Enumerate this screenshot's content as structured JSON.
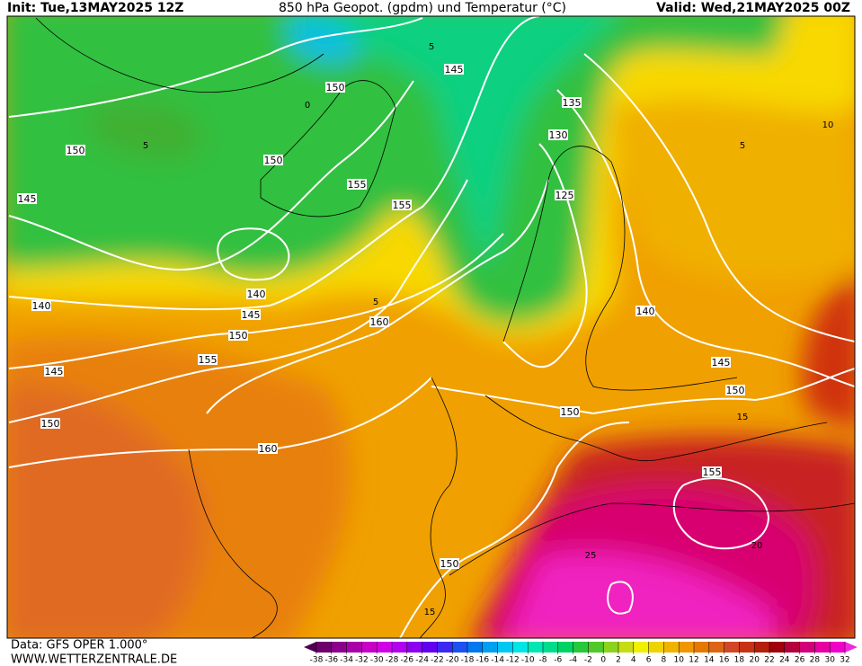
{
  "header": {
    "init": "Init: Tue,13MAY2025 12Z",
    "title": "850 hPa Geopot. (gpdm) und Temperatur (°C)",
    "valid": "Valid: Wed,21MAY2025 00Z"
  },
  "contour_labels": [
    150,
    145,
    135,
    130,
    150,
    150,
    155,
    125,
    145,
    155,
    140,
    140,
    145,
    160,
    150,
    140,
    155,
    145,
    145,
    150,
    150,
    150,
    160,
    155,
    150
  ],
  "isotherm_labels": [
    5,
    5,
    0,
    5,
    10,
    5,
    15,
    20,
    25,
    15
  ],
  "footer": {
    "source": "Data: GFS OPER 1.000°",
    "website": "WWW.WETTERZENTRALE.DE"
  },
  "colorbar": {
    "ticks": [
      -38,
      -36,
      -34,
      -32,
      -30,
      -28,
      -26,
      -24,
      -22,
      -20,
      -18,
      -16,
      -14,
      -12,
      -10,
      -8,
      -6,
      -4,
      -2,
      0,
      2,
      4,
      6,
      8,
      10,
      12,
      14,
      16,
      18,
      20,
      22,
      24,
      26,
      28,
      30,
      32
    ],
    "colors": [
      "#500050",
      "#6e006e",
      "#8c008c",
      "#aa00aa",
      "#c800c8",
      "#d200e6",
      "#b400f0",
      "#8c00f0",
      "#6400f0",
      "#3c28f0",
      "#1e50f0",
      "#0078f0",
      "#00a0f0",
      "#00c8f0",
      "#00e6e6",
      "#00e6b4",
      "#00dc8c",
      "#00d264",
      "#28c83c",
      "#50c828",
      "#8cd21e",
      "#c8dc14",
      "#f0f000",
      "#f0d200",
      "#f0b400",
      "#f09600",
      "#e67800",
      "#dc6414",
      "#d24628",
      "#c83214",
      "#b41e0a",
      "#a0000a",
      "#b4003c",
      "#d20078",
      "#e600a0",
      "#f000c8",
      "#f028dc"
    ]
  }
}
